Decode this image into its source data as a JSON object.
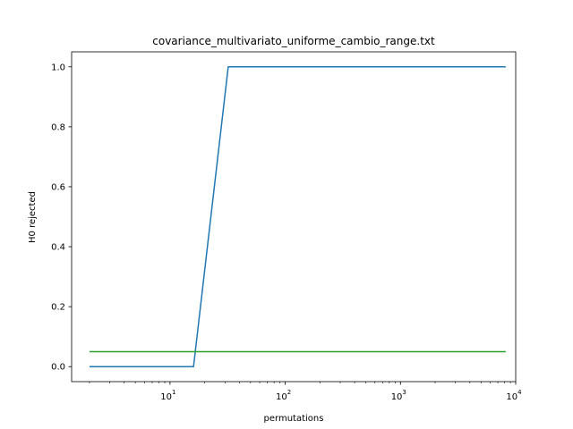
{
  "chart_data": {
    "type": "line",
    "title": "covariance_multivariato_uniforme_cambio_range.txt",
    "xlabel": "permutations",
    "ylabel": "H0 rejected",
    "xscale": "log",
    "xlim": [
      1.4,
      10000
    ],
    "ylim": [
      -0.05,
      1.05
    ],
    "grid": false,
    "x_ticks": [
      {
        "value": 10,
        "label": "10",
        "exp": "1"
      },
      {
        "value": 100,
        "label": "10",
        "exp": "2"
      },
      {
        "value": 1000,
        "label": "10",
        "exp": "3"
      },
      {
        "value": 10000,
        "label": "10",
        "exp": "4"
      }
    ],
    "y_ticks": [
      {
        "value": 0.0,
        "label": "0.0"
      },
      {
        "value": 0.2,
        "label": "0.2"
      },
      {
        "value": 0.4,
        "label": "0.4"
      },
      {
        "value": 0.6,
        "label": "0.6"
      },
      {
        "value": 0.8,
        "label": "0.8"
      },
      {
        "value": 1.0,
        "label": "1.0"
      }
    ],
    "series": [
      {
        "color": "#1f77b4",
        "x": [
          2,
          4,
          8,
          16,
          32,
          64,
          128,
          256,
          512,
          1024,
          2048,
          4096,
          8192
        ],
        "values": [
          0,
          0,
          0,
          0,
          1,
          1,
          1,
          1,
          1,
          1,
          1,
          1,
          1
        ]
      },
      {
        "color": "#2ca02c",
        "x": [
          2,
          4,
          8,
          16,
          32,
          64,
          128,
          256,
          512,
          1024,
          2048,
          4096,
          8192
        ],
        "values": [
          0.05,
          0.05,
          0.05,
          0.05,
          0.05,
          0.05,
          0.05,
          0.05,
          0.05,
          0.05,
          0.05,
          0.05,
          0.05
        ]
      }
    ]
  }
}
